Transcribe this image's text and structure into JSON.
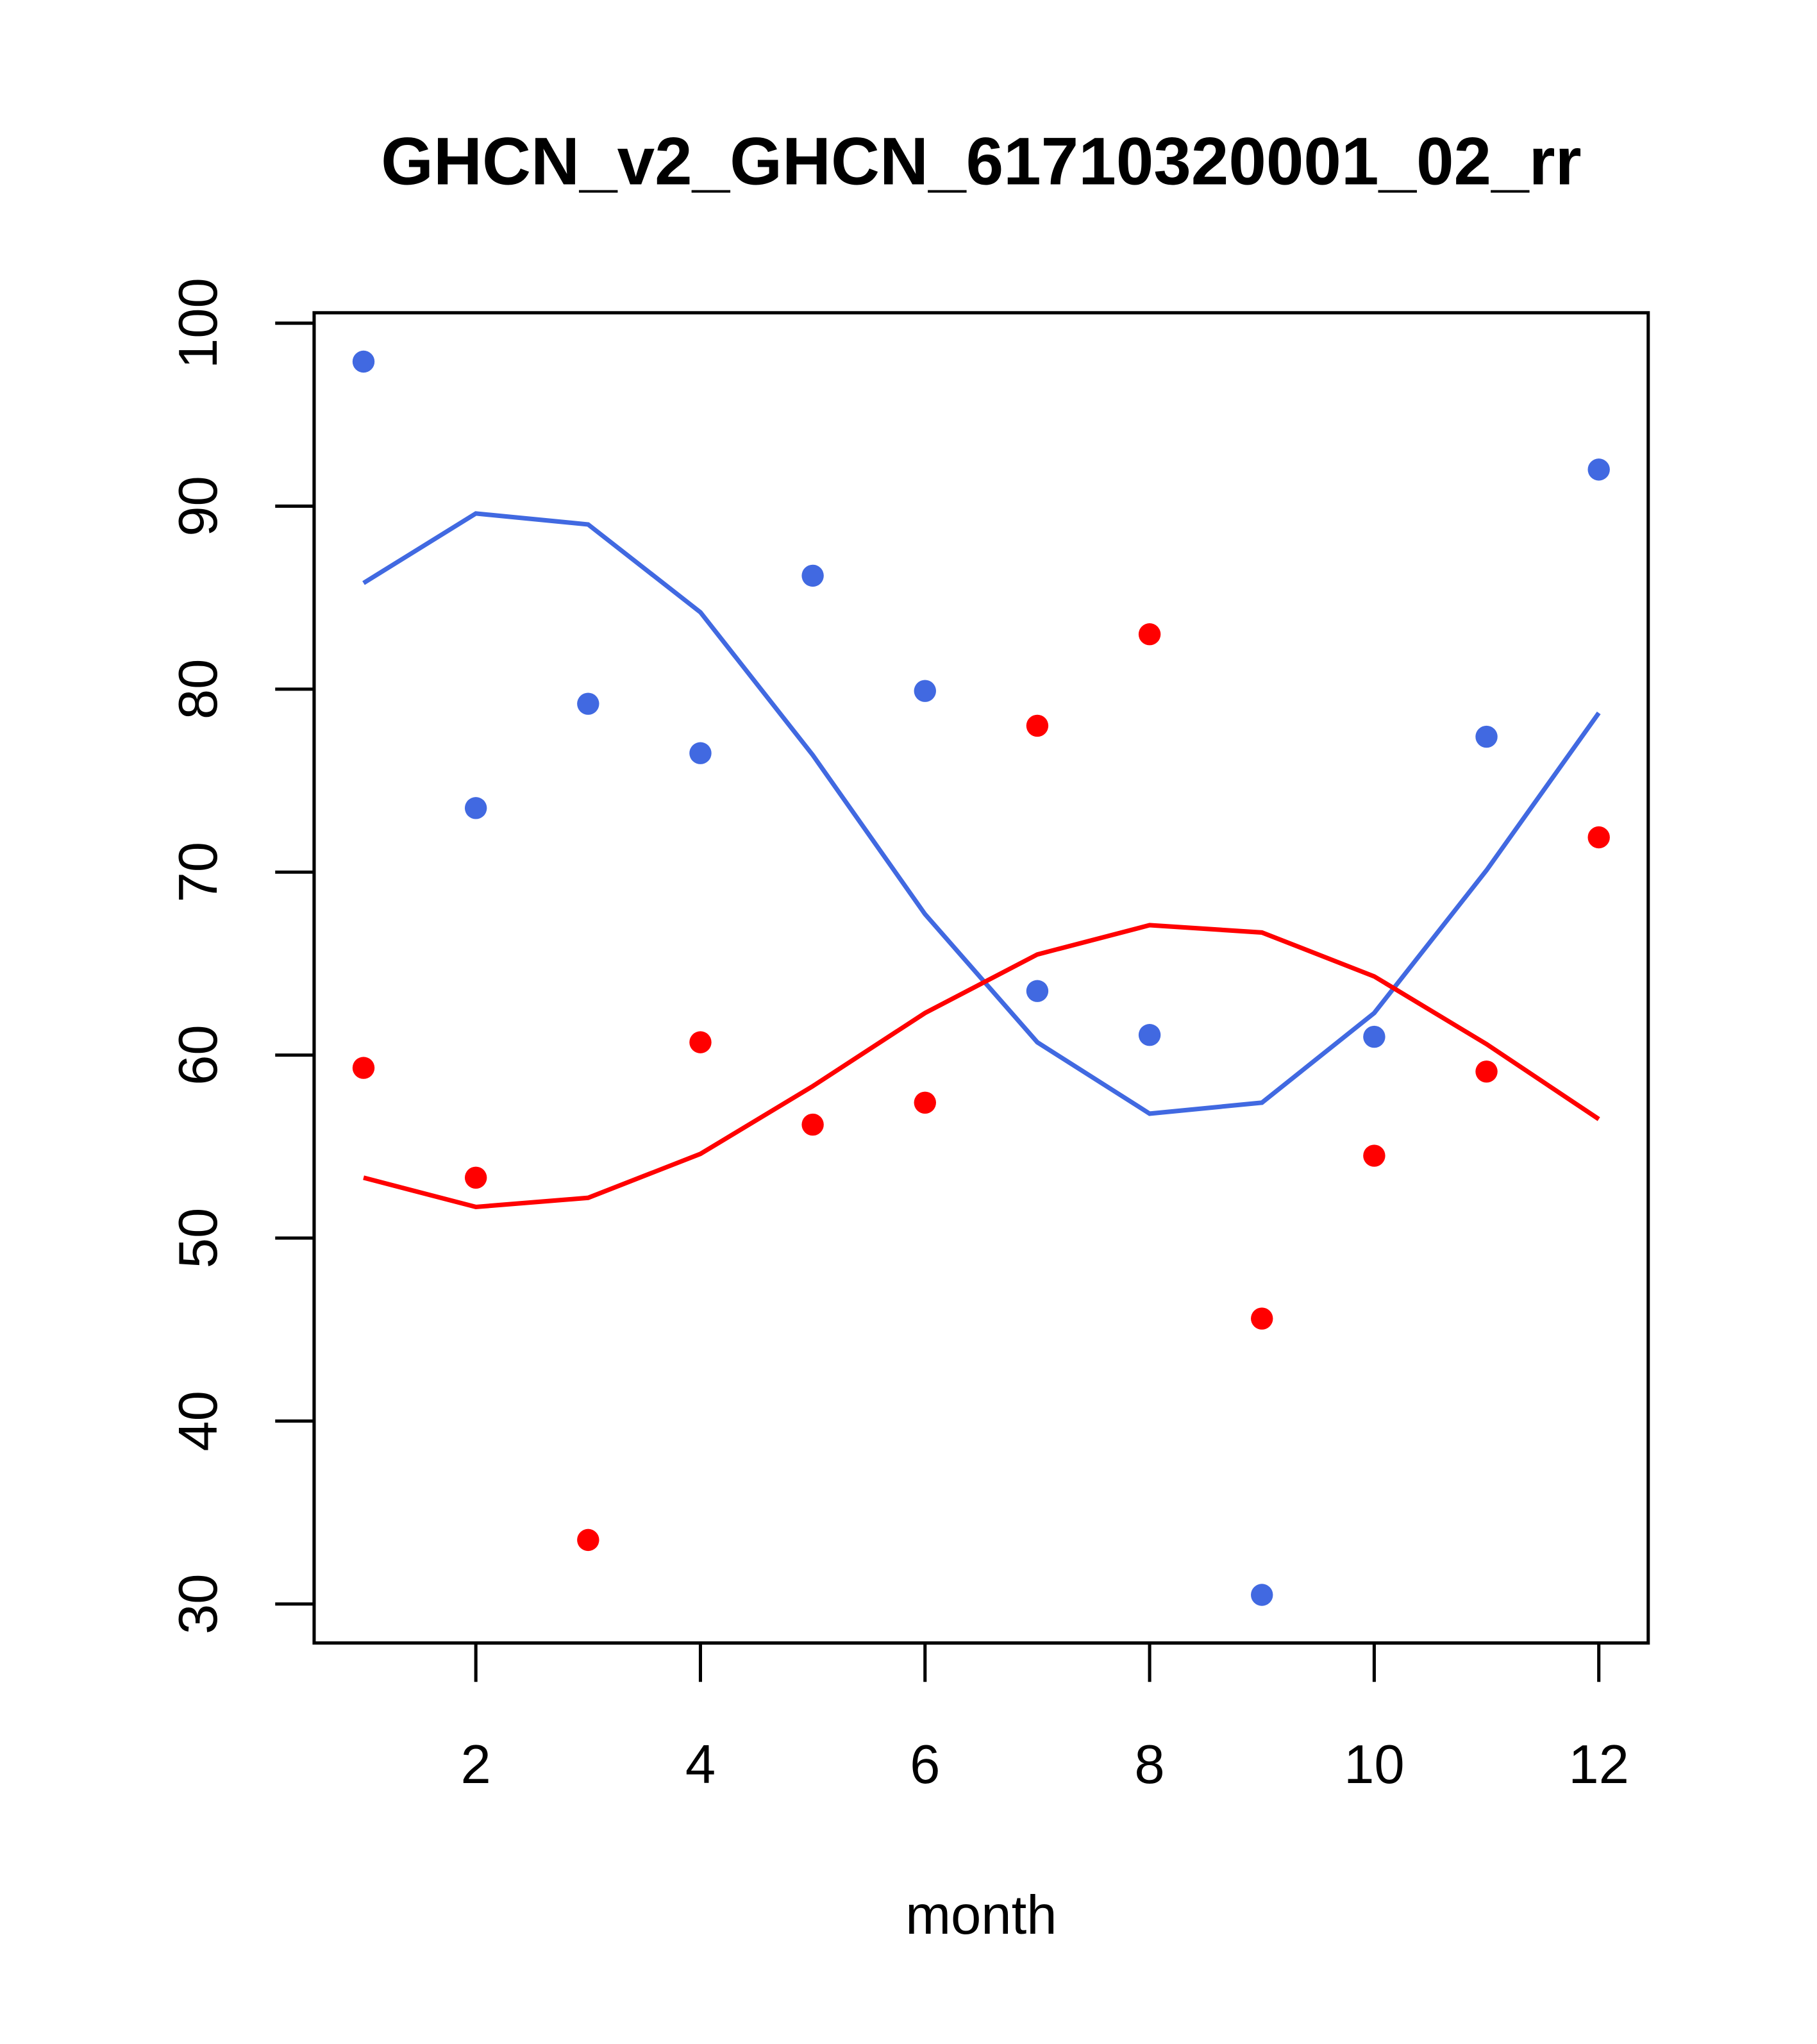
{
  "chart_data": {
    "type": "scatter",
    "title": "GHCN_v2_GHCN_61710320001_02_rr",
    "xlabel": "month",
    "ylabel": "",
    "xlim": [
      0.56,
      12.44
    ],
    "ylim": [
      27.87,
      100.57
    ],
    "xticks": [
      2,
      4,
      6,
      8,
      10,
      12
    ],
    "yticks": [
      30,
      40,
      50,
      60,
      70,
      80,
      90,
      100
    ],
    "grid": false,
    "x": [
      1,
      2,
      3,
      4,
      5,
      6,
      7,
      8,
      9,
      10,
      11,
      12
    ],
    "series": [
      {
        "name": "blue points",
        "kind": "points",
        "color": "#4169E1",
        "values": [
          97.9,
          73.5,
          79.2,
          76.5,
          86.2,
          79.9,
          63.5,
          61.1,
          30.5,
          61.0,
          77.4,
          92.0
        ]
      },
      {
        "name": "red points",
        "kind": "points",
        "color": "#FF0000",
        "values": [
          59.3,
          53.3,
          33.5,
          60.7,
          56.2,
          57.4,
          78.0,
          83.0,
          45.6,
          54.5,
          59.1,
          71.9
        ]
      },
      {
        "name": "blue line",
        "kind": "line",
        "color": "#4169E1",
        "values": [
          85.8,
          89.6,
          89.0,
          84.2,
          76.4,
          67.7,
          60.7,
          56.8,
          57.4,
          62.3,
          70.1,
          78.7
        ]
      },
      {
        "name": "red line",
        "kind": "line",
        "color": "#FF0000",
        "values": [
          53.3,
          51.7,
          52.2,
          54.6,
          58.3,
          62.3,
          65.5,
          67.1,
          66.7,
          64.3,
          60.6,
          56.5
        ]
      }
    ]
  }
}
